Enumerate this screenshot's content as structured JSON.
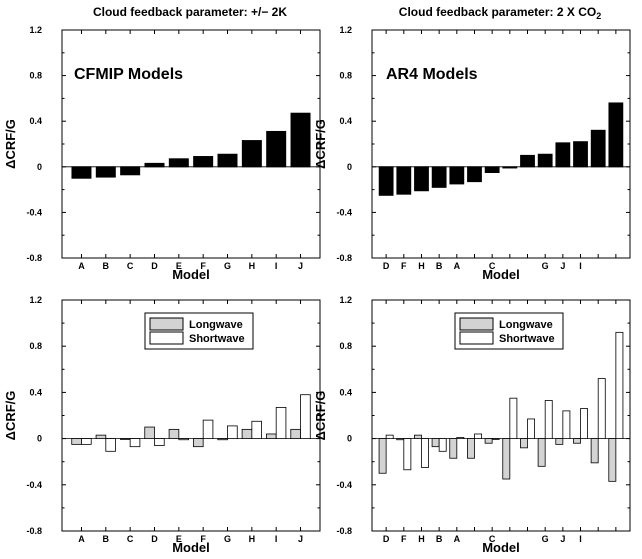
{
  "titles": {
    "left": "Cloud feedback parameter: +/− 2K",
    "right_prefix": "Cloud feedback parameter: 2 X CO",
    "right_sub": "2"
  },
  "legend": {
    "longwave": "Longwave",
    "shortwave": "Shortwave"
  },
  "colors": {
    "longwave": "#d3d3d3",
    "shortwave": "#ffffff",
    "net": "#000000"
  },
  "chart_data": [
    {
      "panel": "top-left",
      "type": "bar",
      "annotation": "CFMIP Models",
      "xlabel": "Model",
      "ylabel": "ΔCRF/G",
      "ylim": [
        -0.8,
        1.2
      ],
      "yticks": [
        "-0.8",
        "-0.4",
        "0",
        "0.4",
        "0.8",
        "1.2"
      ],
      "categories": [
        "A",
        "B",
        "C",
        "D",
        "E",
        "F",
        "G",
        "H",
        "I",
        "J"
      ],
      "values": [
        -0.1,
        -0.09,
        -0.07,
        0.03,
        0.07,
        0.09,
        0.11,
        0.23,
        0.31,
        0.47
      ]
    },
    {
      "panel": "top-right",
      "type": "bar",
      "annotation": "AR4 Models",
      "xlabel": "Model",
      "ylabel": "ΔCRF/G",
      "ylim": [
        -0.8,
        1.2
      ],
      "yticks": [
        "-0.8",
        "-0.4",
        "0",
        "0.4",
        "0.8",
        "1.2"
      ],
      "categories": [
        "D",
        "F",
        "H",
        "B",
        "A",
        "",
        "C",
        "",
        "",
        "G",
        "J",
        "I",
        "",
        ""
      ],
      "values": [
        -0.25,
        -0.24,
        -0.21,
        -0.18,
        -0.15,
        -0.13,
        -0.05,
        -0.01,
        0.1,
        0.11,
        0.21,
        0.22,
        0.32,
        0.56
      ]
    },
    {
      "panel": "bottom-left",
      "type": "bar",
      "xlabel": "Model",
      "ylabel": "ΔCRF/G",
      "ylim": [
        -0.8,
        1.2
      ],
      "yticks": [
        "-0.8",
        "-0.4",
        "0",
        "0.4",
        "0.8",
        "1.2"
      ],
      "categories": [
        "A",
        "B",
        "C",
        "D",
        "E",
        "F",
        "G",
        "H",
        "I",
        "J"
      ],
      "series": [
        {
          "name": "Longwave",
          "values": [
            -0.05,
            0.03,
            0.0,
            0.1,
            0.08,
            -0.07,
            -0.01,
            0.08,
            0.04,
            0.08
          ]
        },
        {
          "name": "Shortwave",
          "values": [
            -0.05,
            -0.11,
            -0.07,
            -0.06,
            -0.01,
            0.16,
            0.11,
            0.15,
            0.27,
            0.38
          ]
        }
      ]
    },
    {
      "panel": "bottom-right",
      "type": "bar",
      "xlabel": "Model",
      "ylabel": "ΔCRF/G",
      "ylim": [
        -0.8,
        1.2
      ],
      "yticks": [
        "-0.8",
        "-0.4",
        "0",
        "0.4",
        "0.8",
        "1.2"
      ],
      "categories": [
        "D",
        "F",
        "H",
        "B",
        "A",
        "",
        "C",
        "",
        "",
        "G",
        "J",
        "I",
        "",
        ""
      ],
      "series": [
        {
          "name": "Longwave",
          "values": [
            -0.3,
            -0.01,
            0.03,
            -0.07,
            -0.17,
            -0.17,
            -0.04,
            -0.35,
            -0.08,
            -0.24,
            -0.05,
            -0.04,
            -0.21,
            -0.37
          ]
        },
        {
          "name": "Shortwave",
          "values": [
            0.03,
            -0.27,
            -0.25,
            -0.11,
            0.01,
            0.04,
            0.0,
            0.35,
            0.17,
            0.33,
            0.24,
            0.26,
            0.52,
            0.92
          ]
        }
      ]
    }
  ]
}
